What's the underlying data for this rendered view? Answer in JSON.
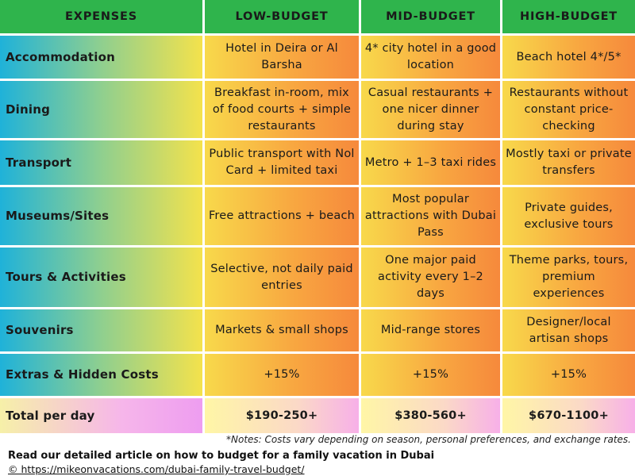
{
  "table": {
    "header": [
      "EXPENSES",
      "LOW-BUDGET",
      "MID-BUDGET",
      "HIGH-BUDGET"
    ],
    "rows": [
      [
        "Accommodation",
        "Hotel in Deira or Al Barsha",
        "4* city hotel in a good location",
        "Beach hotel 4*/5*"
      ],
      [
        "Dining",
        "Breakfast in-room, mix of food courts + simple restaurants",
        "Casual restaurants + one nicer dinner during stay",
        "Restaurants without constant price-checking"
      ],
      [
        "Transport",
        "Public transport with Nol Card + limited taxi",
        "Metro + 1–3 taxi rides",
        "Mostly taxi or private transfers"
      ],
      [
        "Museums/Sites",
        "Free attractions + beach",
        "Most popular attractions with Dubai Pass",
        "Private guides, exclusive tours"
      ],
      [
        "Tours & Activities",
        "Selective, not daily paid entries",
        "One major paid activity every 1–2 days",
        "Theme parks, tours, premium experiences"
      ],
      [
        "Souvenirs",
        "Markets & small shops",
        "Mid-range stores",
        "Designer/local artisan shops"
      ],
      [
        "Extras & Hidden Costs",
        "+15%",
        "+15%",
        "+15%"
      ],
      [
        "Total per day",
        "$190-250+",
        "$380-560+",
        "$670-1100+"
      ]
    ]
  },
  "notes": "*Notes: Costs vary depending on season, personal preferences, and exchange rates.",
  "footer": {
    "article": "Read our detailed article on how to budget for a family vacation in Dubai",
    "link": "© https://mikeonvacations.com/dubai-family-travel-budget/"
  }
}
